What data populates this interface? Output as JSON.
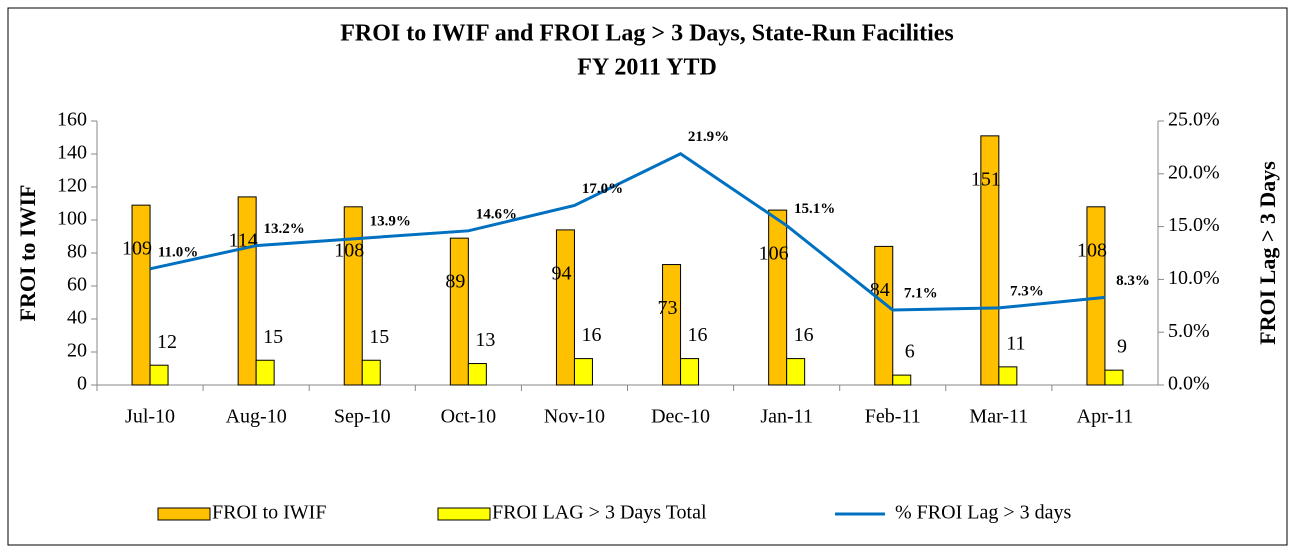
{
  "chart_data": {
    "type": "bar-line",
    "title": "FROI to IWIF and FROI Lag > 3 Days, State-Run Facilities",
    "subtitle": "FY 2011 YTD",
    "y_label": "FROI to IWIF",
    "y2_label": "FROI Lag > 3 Days",
    "categories": [
      "Jul-10",
      "Aug-10",
      "Sep-10",
      "Oct-10",
      "Nov-10",
      "Dec-10",
      "Jan-11",
      "Feb-11",
      "Mar-11",
      "Apr-11"
    ],
    "series": [
      {
        "name": "FROI to IWIF",
        "type": "bar",
        "color": "#ffc000",
        "values": [
          109,
          114,
          108,
          89,
          94,
          73,
          106,
          84,
          151,
          108
        ]
      },
      {
        "name": "FROI LAG > 3 Days Total",
        "type": "bar",
        "color": "#ffff00",
        "values": [
          12,
          15,
          15,
          13,
          16,
          16,
          16,
          6,
          11,
          9
        ]
      },
      {
        "name": "% FROI Lag > 3 days",
        "type": "line",
        "axis": "y2",
        "color": "#0070c0",
        "values": [
          11.0,
          13.2,
          13.9,
          14.6,
          17.0,
          21.9,
          15.1,
          7.1,
          7.3,
          8.3
        ],
        "value_labels": [
          "11.0%",
          "13.2%",
          "13.9%",
          "14.6%",
          "17.0%",
          "21.9%",
          "15.1%",
          "7.1%",
          "7.3%",
          "8.3%"
        ]
      }
    ],
    "ylim": [
      0,
      160
    ],
    "yticks": [
      0,
      20,
      40,
      60,
      80,
      100,
      120,
      140,
      160
    ],
    "y2lim": [
      0,
      25
    ],
    "y2ticks": [
      {
        "value": 0,
        "label": "0.0%"
      },
      {
        "value": 5,
        "label": "5.0%"
      },
      {
        "value": 10,
        "label": "10.0%"
      },
      {
        "value": 15,
        "label": "15.0%"
      },
      {
        "value": 20,
        "label": "20.0%"
      },
      {
        "value": 25,
        "label": "25.0%"
      }
    ],
    "legend": "bottom"
  }
}
